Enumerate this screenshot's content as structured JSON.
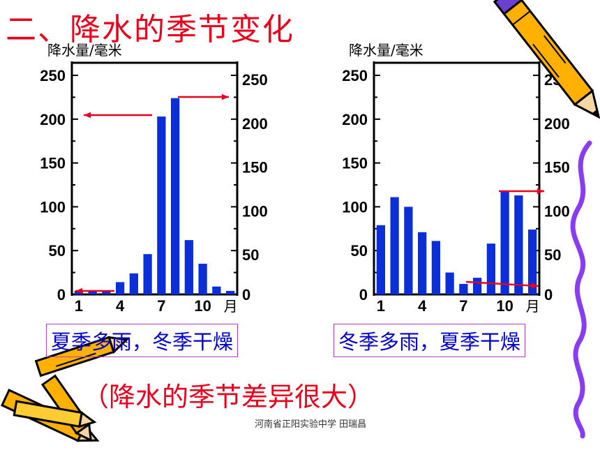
{
  "slide": {
    "title": "二、降水的季节变化",
    "subtitle": "（降水的季节差异很大）",
    "footer": "河南省正阳实验中学 田瑞昌"
  },
  "colors": {
    "bar": "#0a2ed8",
    "arrow": "#e8001c",
    "title": "#e8001c",
    "caption": "#0000cc"
  },
  "icons": [
    "pencil-icon",
    "crayons-icon",
    "squiggle-line-icon"
  ],
  "chart_data": [
    {
      "type": "bar",
      "ylabel": "降水量/毫米",
      "ylim": [
        0,
        250
      ],
      "yticks": [
        "0",
        "50",
        "100",
        "150",
        "200",
        "250"
      ],
      "xticks": [
        "1",
        "4",
        "7",
        "10"
      ],
      "xunit": "月",
      "categories": [
        "1",
        "2",
        "3",
        "4",
        "5",
        "6",
        "7",
        "8",
        "9",
        "10",
        "11",
        "12"
      ],
      "values": [
        4,
        4,
        4,
        14,
        24,
        46,
        203,
        224,
        62,
        35,
        9,
        4
      ],
      "caption": "夏季多雨，冬季干燥"
    },
    {
      "type": "bar",
      "ylabel": "降水量/毫米",
      "ylim": [
        0,
        250
      ],
      "yticks": [
        "0",
        "50",
        "100",
        "150",
        "200",
        "250"
      ],
      "xticks": [
        "1",
        "4",
        "7",
        "10"
      ],
      "xunit": "月",
      "categories": [
        "1",
        "2",
        "3",
        "4",
        "5",
        "6",
        "7",
        "8",
        "9",
        "10",
        "11",
        "12"
      ],
      "values": [
        79,
        111,
        100,
        71,
        61,
        25,
        12,
        19,
        58,
        117,
        113,
        74
      ],
      "caption": "冬季多雨，夏季干燥"
    }
  ]
}
